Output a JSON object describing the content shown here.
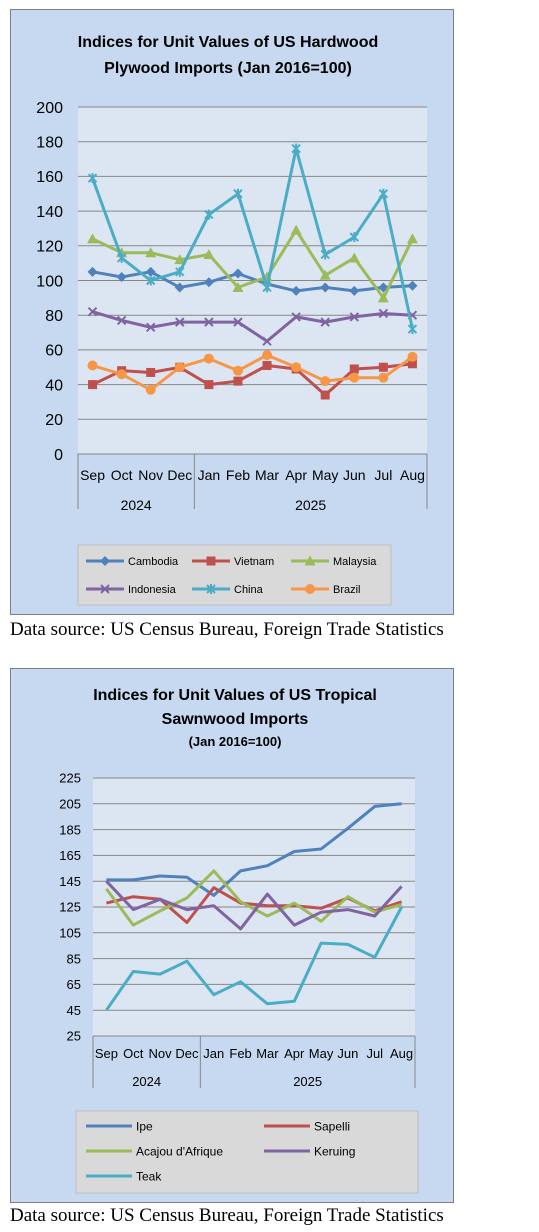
{
  "source_note_1": "Data source: US Census Bureau, Foreign Trade Statistics",
  "source_note_2": "Data source: US Census Bureau, Foreign Trade Statistics",
  "chart_data": [
    {
      "type": "line",
      "title_lines": [
        "Indices for Unit Values of US Hardwood",
        "Plywood Imports (Jan 2016=100)"
      ],
      "categories": [
        "Sep",
        "Oct",
        "Nov",
        "Dec",
        "Jan",
        "Feb",
        "Mar",
        "Apr",
        "May",
        "Jun",
        "Jul",
        "Aug"
      ],
      "year_groups": [
        {
          "label": "2024",
          "start": 0,
          "end": 3
        },
        {
          "label": "2025",
          "start": 4,
          "end": 11
        }
      ],
      "ylim": [
        0,
        200
      ],
      "yticks": [
        0,
        20,
        40,
        60,
        80,
        100,
        120,
        140,
        160,
        180,
        200
      ],
      "grid": true,
      "legend_position": "bottom",
      "series": [
        {
          "name": "Cambodia",
          "color": "#4f81bd",
          "marker": "diamond",
          "values": [
            105,
            102,
            105,
            96,
            99,
            104,
            98,
            94,
            96,
            94,
            96,
            97
          ]
        },
        {
          "name": "Vietnam",
          "color": "#c0504d",
          "marker": "square",
          "values": [
            40,
            48,
            47,
            50,
            40,
            42,
            51,
            49,
            34,
            49,
            50,
            52
          ]
        },
        {
          "name": "Malaysia",
          "color": "#9bbb59",
          "marker": "triangle",
          "values": [
            124,
            116,
            116,
            112,
            115,
            96,
            102,
            129,
            103,
            113,
            90,
            124
          ]
        },
        {
          "name": "Indonesia",
          "color": "#8064a2",
          "marker": "x",
          "values": [
            82,
            77,
            73,
            76,
            76,
            76,
            65,
            79,
            76,
            79,
            81,
            80
          ]
        },
        {
          "name": "China",
          "color": "#4bacc6",
          "marker": "star",
          "values": [
            159,
            113,
            100,
            105,
            138,
            150,
            96,
            176,
            115,
            125,
            150,
            72
          ]
        },
        {
          "name": "Brazil",
          "color": "#f79646",
          "marker": "circle",
          "values": [
            51,
            46,
            37,
            50,
            55,
            48,
            57,
            50,
            42,
            44,
            44,
            56
          ]
        }
      ]
    },
    {
      "type": "line",
      "title_lines": [
        "Indices for Unit Values of US Tropical",
        "Sawnwood Imports"
      ],
      "subtitle": "(Jan 2016=100)",
      "categories": [
        "Sep",
        "Oct",
        "Nov",
        "Dec",
        "Jan",
        "Feb",
        "Mar",
        "Apr",
        "May",
        "Jun",
        "Jul",
        "Aug"
      ],
      "year_groups": [
        {
          "label": "2024",
          "start": 0,
          "end": 3
        },
        {
          "label": "2025",
          "start": 4,
          "end": 11
        }
      ],
      "ylim": [
        25,
        225
      ],
      "yticks": [
        25,
        45,
        65,
        85,
        105,
        125,
        145,
        165,
        185,
        205,
        225
      ],
      "grid": true,
      "legend_position": "bottom",
      "series": [
        {
          "name": "Ipe",
          "color": "#4f81bd",
          "values": [
            146,
            146,
            149,
            148,
            134,
            153,
            157,
            168,
            170,
            186,
            203,
            205
          ]
        },
        {
          "name": "Sapelli",
          "color": "#c0504d",
          "values": [
            128,
            133,
            131,
            113,
            140,
            128,
            126,
            126,
            124,
            132,
            122,
            129
          ]
        },
        {
          "name": "Acajou d'Afrique",
          "color": "#9bbb59",
          "values": [
            139,
            111,
            122,
            132,
            153,
            129,
            118,
            128,
            114,
            133,
            121,
            127
          ]
        },
        {
          "name": "Keruing",
          "color": "#8064a2",
          "values": [
            145,
            123,
            131,
            123,
            126,
            108,
            135,
            111,
            121,
            123,
            118,
            141
          ]
        },
        {
          "name": "Teak",
          "color": "#4bacc6",
          "values": [
            45,
            75,
            73,
            83,
            57,
            67,
            50,
            52,
            97,
            96,
            86,
            125
          ]
        }
      ]
    }
  ]
}
